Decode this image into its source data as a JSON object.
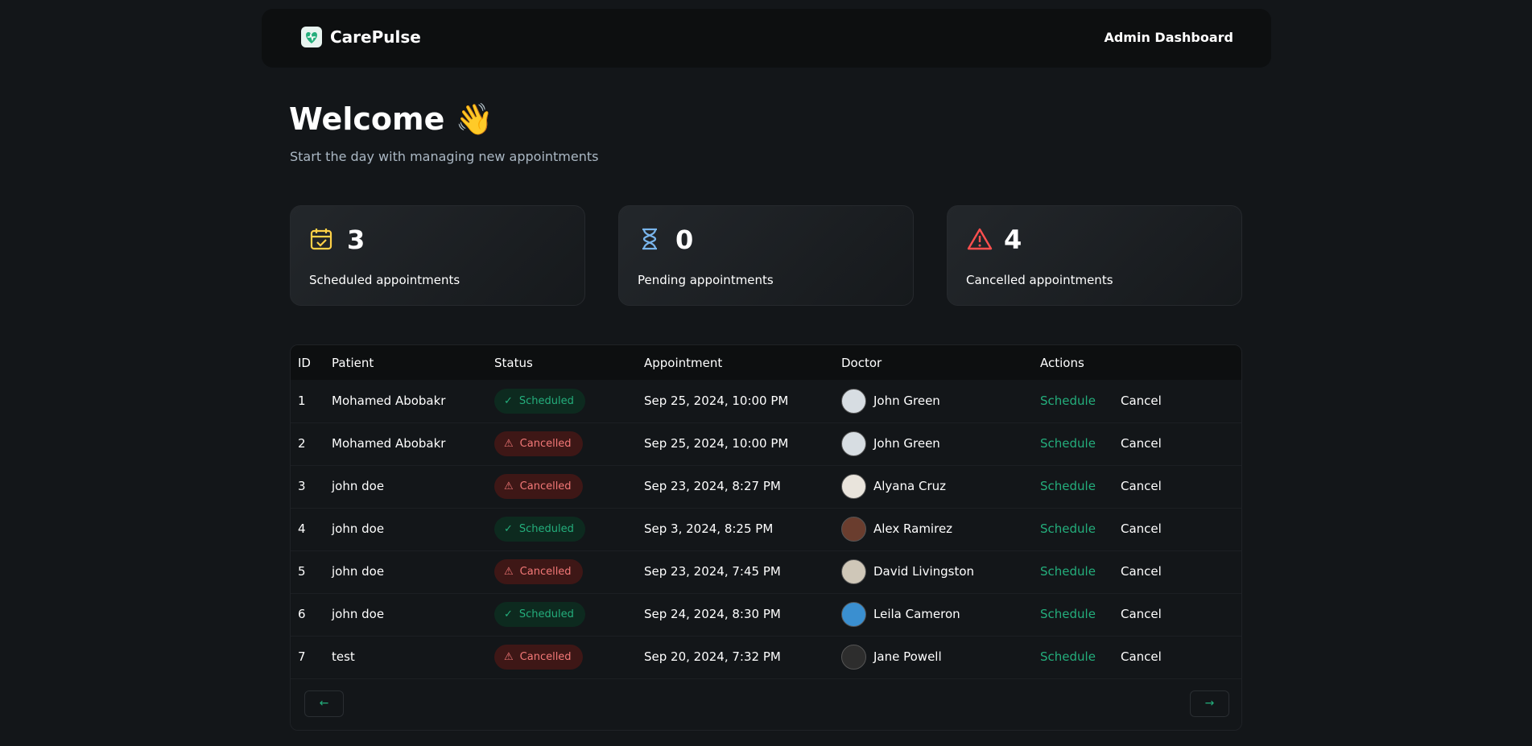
{
  "header": {
    "logo": "CarePulse",
    "right": "Admin Dashboard"
  },
  "welcome": {
    "title": "Welcome 👋",
    "subtitle": "Start the day with managing new appointments"
  },
  "stats": [
    {
      "count": 3,
      "label": "Scheduled appointments"
    },
    {
      "count": 0,
      "label": "Pending appointments"
    },
    {
      "count": 4,
      "label": "Cancelled appointments"
    }
  ],
  "table": {
    "columns": [
      "ID",
      "Patient",
      "Status",
      "Appointment",
      "Doctor",
      "Actions"
    ],
    "actions": {
      "schedule": "Schedule",
      "cancel": "Cancel"
    },
    "rows": [
      {
        "id": 1,
        "patient": "Mohamed Abobakr",
        "status": "Scheduled",
        "appointment": "Sep 25, 2024, 10:00 PM",
        "doctor": "John Green"
      },
      {
        "id": 2,
        "patient": "Mohamed Abobakr",
        "status": "Cancelled",
        "appointment": "Sep 25, 2024, 10:00 PM",
        "doctor": "John Green"
      },
      {
        "id": 3,
        "patient": "john doe",
        "status": "Cancelled",
        "appointment": "Sep 23, 2024, 8:27 PM",
        "doctor": "Alyana Cruz"
      },
      {
        "id": 4,
        "patient": "john doe",
        "status": "Scheduled",
        "appointment": "Sep 3, 2024, 8:25 PM",
        "doctor": "Alex Ramirez"
      },
      {
        "id": 5,
        "patient": "john doe",
        "status": "Cancelled",
        "appointment": "Sep 23, 2024, 7:45 PM",
        "doctor": "David Livingston"
      },
      {
        "id": 6,
        "patient": "john doe",
        "status": "Scheduled",
        "appointment": "Sep 24, 2024, 8:30 PM",
        "doctor": "Leila Cameron"
      },
      {
        "id": 7,
        "patient": "test",
        "status": "Cancelled",
        "appointment": "Sep 20, 2024, 7:32 PM",
        "doctor": "Jane Powell"
      }
    ]
  }
}
